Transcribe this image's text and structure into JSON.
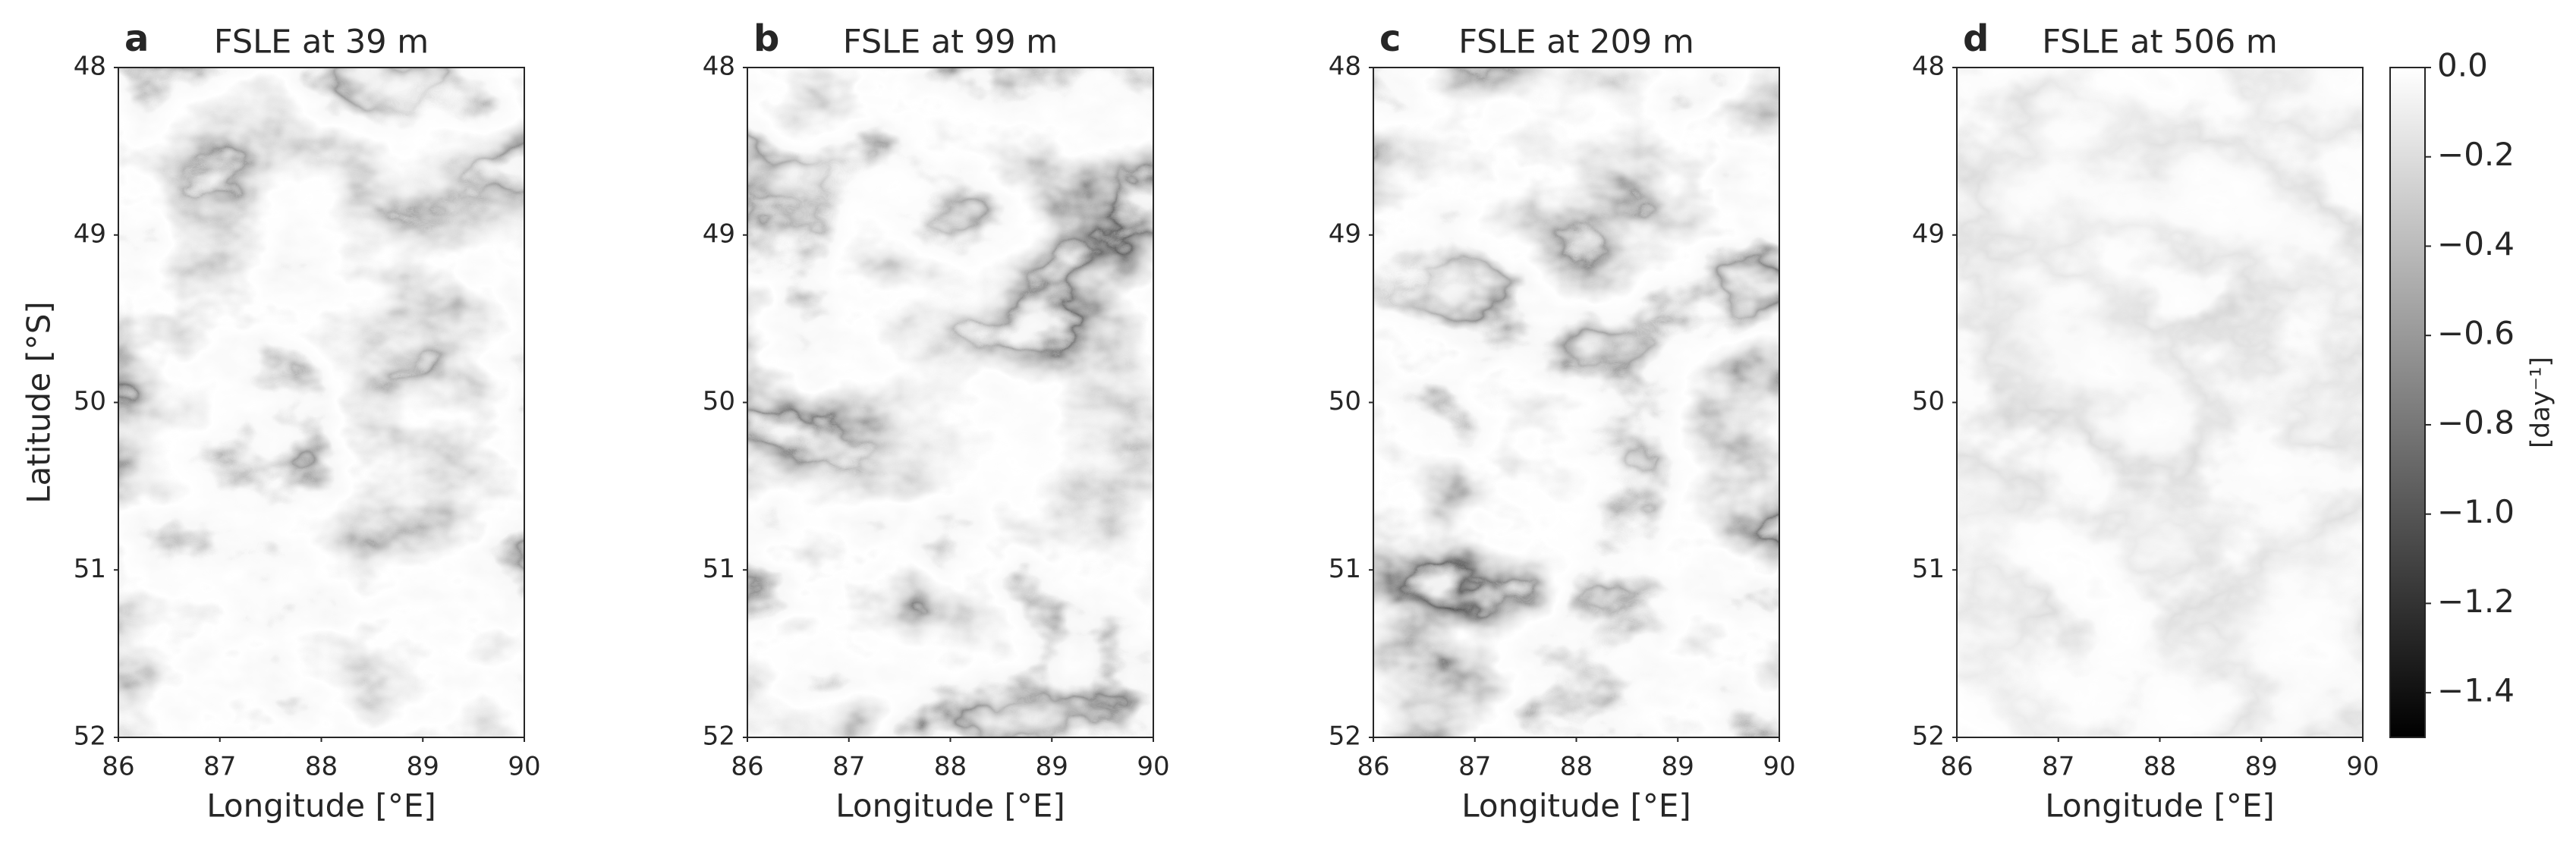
{
  "chart_data": [
    {
      "type": "heatmap",
      "label": "a",
      "title": "FSLE at 39 m",
      "xlabel": "Longitude [°E]",
      "ylabel": "Latitude [°S]",
      "xlim": [
        86,
        90
      ],
      "xticks": [
        86,
        87,
        88,
        89,
        90
      ],
      "ylim": [
        52,
        48
      ],
      "yticks": [
        48,
        49,
        50,
        51,
        52
      ]
    },
    {
      "type": "heatmap",
      "label": "b",
      "title": "FSLE at 99 m",
      "xlabel": "Longitude [°E]",
      "xlim": [
        86,
        90
      ],
      "xticks": [
        86,
        87,
        88,
        89,
        90
      ],
      "ylim": [
        52,
        48
      ],
      "yticks": [
        48,
        49,
        50,
        51,
        52
      ]
    },
    {
      "type": "heatmap",
      "label": "c",
      "title": "FSLE at 209 m",
      "xlabel": "Longitude [°E]",
      "xlim": [
        86,
        90
      ],
      "xticks": [
        86,
        87,
        88,
        89,
        90
      ],
      "ylim": [
        52,
        48
      ],
      "yticks": [
        48,
        49,
        50,
        51,
        52
      ]
    },
    {
      "type": "heatmap",
      "label": "d",
      "title": "FSLE at 506 m",
      "xlabel": "Longitude [°E]",
      "xlim": [
        86,
        90
      ],
      "xticks": [
        86,
        87,
        88,
        89,
        90
      ],
      "ylim": [
        52,
        48
      ],
      "yticks": [
        48,
        49,
        50,
        51,
        52
      ],
      "colorbar": {
        "label": "[day⁻¹]",
        "lim": [
          -1.5,
          0
        ],
        "ticks": [
          {
            "value": 0,
            "label": "0.0"
          },
          {
            "value": -0.2,
            "label": "−0.2"
          },
          {
            "value": -0.4,
            "label": "−0.4"
          },
          {
            "value": -0.6,
            "label": "−0.6"
          },
          {
            "value": -0.8,
            "label": "−0.8"
          },
          {
            "value": -1.0,
            "label": "−1.0"
          },
          {
            "value": -1.2,
            "label": "−1.2"
          },
          {
            "value": -1.4,
            "label": "−1.4"
          }
        ]
      }
    }
  ]
}
